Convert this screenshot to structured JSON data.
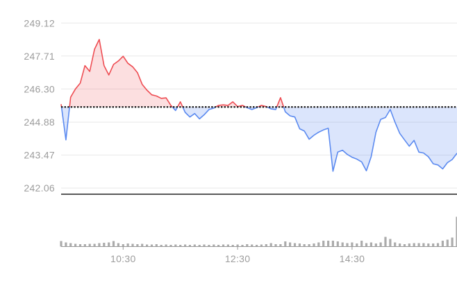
{
  "chart_data": {
    "type": "area",
    "description": "Intraday stock price area chart with volume bars; red above previous close, blue below",
    "previous_close": 245.53,
    "session_high": 248.42,
    "session_low": 242.78,
    "last_price": 243.55,
    "y_axis": {
      "ticks": [
        {
          "label": "249.12",
          "value": 249.12
        },
        {
          "label": "247.71",
          "value": 247.71
        },
        {
          "label": "246.30",
          "value": 246.3
        },
        {
          "label": "244.88",
          "value": 244.88
        },
        {
          "label": "243.47",
          "value": 243.47
        },
        {
          "label": "242.06",
          "value": 242.06
        }
      ]
    },
    "x_axis": {
      "tick_labels": [
        "10:30",
        "12:30",
        "14:30"
      ],
      "start_time": "9:25",
      "end_time": "16:20",
      "interval_minutes": 5
    },
    "series": [
      {
        "name": "price",
        "times": [
          "9:25",
          "9:30",
          "9:35",
          "9:40",
          "9:45",
          "9:50",
          "9:55",
          "10:00",
          "10:05",
          "10:10",
          "10:15",
          "10:20",
          "10:25",
          "10:30",
          "10:35",
          "10:40",
          "10:45",
          "10:50",
          "10:55",
          "11:00",
          "11:05",
          "11:10",
          "11:15",
          "11:20",
          "11:25",
          "11:30",
          "11:35",
          "11:40",
          "11:45",
          "11:50",
          "11:55",
          "12:00",
          "12:05",
          "12:10",
          "12:15",
          "12:20",
          "12:25",
          "12:30",
          "12:35",
          "12:40",
          "12:45",
          "12:50",
          "12:55",
          "13:00",
          "13:05",
          "13:10",
          "13:15",
          "13:20",
          "13:25",
          "13:30",
          "13:35",
          "13:40",
          "13:45",
          "13:50",
          "13:55",
          "14:00",
          "14:05",
          "14:10",
          "14:15",
          "14:20",
          "14:25",
          "14:30",
          "14:35",
          "14:40",
          "14:45",
          "14:50",
          "14:55",
          "15:00",
          "15:05",
          "15:10",
          "15:15",
          "15:20",
          "15:25",
          "15:30",
          "15:35",
          "15:40",
          "15:45",
          "15:50",
          "15:55",
          "16:00",
          "16:05",
          "16:10",
          "16:15",
          "16:20"
        ],
        "values": [
          245.65,
          244.12,
          245.95,
          246.3,
          246.55,
          247.3,
          247.05,
          248.0,
          248.42,
          247.3,
          246.9,
          247.35,
          247.5,
          247.7,
          247.4,
          247.25,
          247.0,
          246.5,
          246.25,
          246.05,
          246.0,
          245.9,
          245.92,
          245.6,
          245.38,
          245.75,
          245.3,
          245.1,
          245.25,
          245.02,
          245.2,
          245.42,
          245.48,
          245.6,
          245.62,
          245.6,
          245.75,
          245.55,
          245.6,
          245.5,
          245.42,
          245.5,
          245.6,
          245.55,
          245.45,
          245.42,
          245.93,
          245.32,
          245.15,
          245.1,
          244.6,
          244.5,
          244.15,
          244.32,
          244.45,
          244.55,
          244.62,
          242.78,
          243.6,
          243.68,
          243.5,
          243.38,
          243.3,
          243.18,
          242.8,
          243.4,
          244.45,
          245.0,
          245.08,
          245.42,
          244.88,
          244.4,
          244.12,
          243.85,
          244.1,
          243.6,
          243.56,
          243.4,
          243.1,
          243.05,
          242.88,
          243.15,
          243.28,
          243.55
        ]
      },
      {
        "name": "volume",
        "unit": "relative",
        "values": [
          8,
          6,
          5,
          4,
          3.5,
          3.5,
          4,
          4,
          5,
          5.5,
          6,
          8,
          5,
          3.5,
          4.5,
          4,
          3.5,
          4,
          3,
          3,
          3.5,
          2.5,
          3,
          2.5,
          3,
          2.5,
          3,
          2.5,
          3,
          2.5,
          3,
          2.5,
          3,
          2.5,
          3,
          3,
          2.5,
          3,
          2.5,
          3.5,
          3,
          2.5,
          3,
          3.5,
          5,
          3.5,
          3.5,
          7.5,
          6,
          5,
          4.5,
          3.5,
          3.5,
          4.5,
          6,
          8.5,
          8.5,
          8.5,
          7.5,
          6,
          5,
          6,
          4.5,
          8.5,
          5,
          6,
          4.5,
          6,
          14,
          11,
          6,
          4.5,
          3.5,
          4.5,
          5,
          5,
          5,
          4.5,
          4.5,
          5,
          8.5,
          10,
          13,
          43
        ]
      }
    ],
    "colors": {
      "up_line": "#ee4c52",
      "up_fill": "rgba(238,76,82,0.18)",
      "down_line": "#5b8af0",
      "down_fill": "rgba(91,138,240,0.22)",
      "reference_line": "#151515",
      "grid_line": "#e8e8e8",
      "axis_line": "#9a9a9a",
      "tick_label": "#9c9c9c",
      "volume_bar": "#ababab",
      "baseline_border": "#222222",
      "background": "#ffffff"
    },
    "layout": {
      "grid": "horizontal-only",
      "legend": "none",
      "reference_line_style": "dotted",
      "volume_panel": "bottom"
    }
  }
}
